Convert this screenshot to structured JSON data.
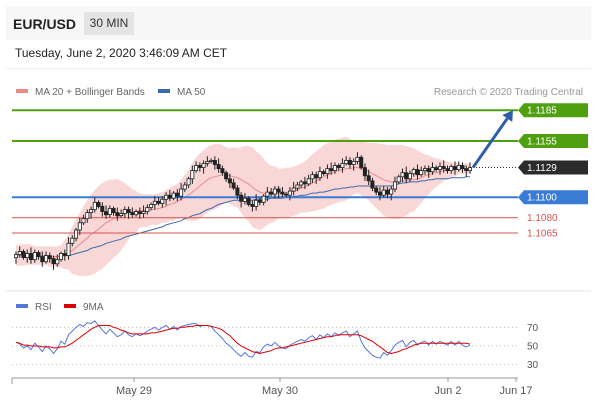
{
  "header": {
    "symbol": "EUR/USD",
    "timeframe": "30 MIN",
    "datetime": "Tuesday, June 2, 2020 3:46:09 AM CET"
  },
  "legend": {
    "ma20_label": "MA 20 + Bollinger Bands",
    "ma50_label": "MA 50",
    "credit": "Research © 2020 Trading Central",
    "ma20_color": "#e88a8a",
    "ma50_color": "#3a6aa8"
  },
  "rsi_legend": {
    "rsi_label": "RSI",
    "ma9_label": "9MA",
    "rsi_color": "#5577dd",
    "ma9_color": "#dd0000"
  },
  "colors": {
    "green": "#4fa00f",
    "blue": "#3a7bd5",
    "red": "#d9534f",
    "dark": "#2b2b2b",
    "arrow": "#2f5ea8"
  },
  "chart_data": [
    {
      "type": "candlestick",
      "x_tick_labels": [
        "May 29",
        "May 30",
        "Jun 2",
        "Jun 17"
      ],
      "ylim": [
        1.1025,
        1.1195
      ],
      "levels": [
        {
          "label": "1.1185",
          "value": 1.1185,
          "style": "resistance-green",
          "boxed": true
        },
        {
          "label": "1.1155",
          "value": 1.1155,
          "style": "resistance-green",
          "boxed": true
        },
        {
          "label": "1.1129",
          "value": 1.1129,
          "style": "current-price",
          "boxed": true
        },
        {
          "label": "1.1100",
          "value": 1.11,
          "style": "pivot-blue",
          "boxed": true
        },
        {
          "label": "1.1080",
          "value": 1.108,
          "style": "support-red",
          "boxed": false
        },
        {
          "label": "1.1065",
          "value": 1.1065,
          "style": "support-red",
          "boxed": false
        }
      ],
      "close": [
        1.1044,
        1.1047,
        1.1041,
        1.1045,
        1.1039,
        1.1046,
        1.1042,
        1.1037,
        1.1043,
        1.104,
        1.1035,
        1.1039,
        1.1045,
        1.1043,
        1.1055,
        1.106,
        1.1068,
        1.1075,
        1.1079,
        1.1085,
        1.1088,
        1.1095,
        1.1091,
        1.1086,
        1.1083,
        1.1089,
        1.1085,
        1.1082,
        1.1084,
        1.1088,
        1.1085,
        1.1083,
        1.1086,
        1.1084,
        1.1086,
        1.109,
        1.1093,
        1.1096,
        1.1094,
        1.1098,
        1.1102,
        1.1099,
        1.1104,
        1.1101,
        1.1108,
        1.1112,
        1.1118,
        1.1126,
        1.1131,
        1.1129,
        1.1133,
        1.1135,
        1.1136,
        1.1132,
        1.1128,
        1.1124,
        1.1118,
        1.1114,
        1.1109,
        1.1102,
        1.1096,
        1.1099,
        1.1093,
        1.1091,
        1.1097,
        1.1095,
        1.1101,
        1.1105,
        1.1103,
        1.1108,
        1.1105,
        1.1103,
        1.1102,
        1.1106,
        1.1109,
        1.1112,
        1.1115,
        1.1113,
        1.1118,
        1.1122,
        1.1119,
        1.1125,
        1.1123,
        1.1128,
        1.1126,
        1.1131,
        1.1129,
        1.1133,
        1.1136,
        1.1132,
        1.1135,
        1.1139,
        1.1129,
        1.1121,
        1.1116,
        1.1109,
        1.1105,
        1.1102,
        1.1107,
        1.1103,
        1.1108,
        1.1115,
        1.112,
        1.1124,
        1.1118,
        1.1123,
        1.1127,
        1.1122,
        1.1126,
        1.1128,
        1.1125,
        1.1129,
        1.1127,
        1.113,
        1.1128,
        1.1126,
        1.113,
        1.1127,
        1.1131,
        1.1128,
        1.1126,
        1.1129
      ],
      "ma20": [
        1.1043,
        1.1043,
        1.1044,
        1.1044,
        1.1044,
        1.1043,
        1.1043,
        1.1043,
        1.1043,
        1.1042,
        1.1042,
        1.1042,
        1.1042,
        1.1044,
        1.1046,
        1.1048,
        1.1051,
        1.1054,
        1.1057,
        1.106,
        1.1064,
        1.1066,
        1.1069,
        1.1072,
        1.1075,
        1.1077,
        1.1079,
        1.1081,
        1.1082,
        1.1084,
        1.1085,
        1.1086,
        1.1086,
        1.1087,
        1.1087,
        1.1087,
        1.1088,
        1.1088,
        1.1089,
        1.109,
        1.1091,
        1.1093,
        1.1094,
        1.1096,
        1.1098,
        1.11,
        1.1102,
        1.1105,
        1.1108,
        1.1111,
        1.1114,
        1.1117,
        1.1119,
        1.112,
        1.1121,
        1.1122,
        1.1122,
        1.1121,
        1.112,
        1.1119,
        1.1117,
        1.1115,
        1.1113,
        1.111,
        1.1107,
        1.1105,
        1.1104,
        1.1103,
        1.1103,
        1.1103,
        1.1104,
        1.1104,
        1.1104,
        1.1105,
        1.1106,
        1.1107,
        1.1109,
        1.111,
        1.1112,
        1.1114,
        1.1116,
        1.1118,
        1.112,
        1.1122,
        1.1123,
        1.1125,
        1.1126,
        1.1127,
        1.1128,
        1.1128,
        1.1129,
        1.1129,
        1.1128,
        1.1127,
        1.1125,
        1.1123,
        1.1121,
        1.1119,
        1.1117,
        1.1116,
        1.1115,
        1.1115,
        1.1115,
        1.1116,
        1.1116,
        1.1117,
        1.1117,
        1.1118,
        1.1119,
        1.1121,
        1.1122,
        1.1123,
        1.1124,
        1.1125,
        1.1126,
        1.1126,
        1.1127,
        1.1127,
        1.1128,
        1.1128,
        1.1128,
        1.1128
      ],
      "bb_upper": [
        1.1053,
        1.1054,
        1.1054,
        1.1054,
        1.1054,
        1.1052,
        1.1052,
        1.1052,
        1.1052,
        1.1052,
        1.1052,
        1.1052,
        1.1053,
        1.1058,
        1.1064,
        1.1071,
        1.1078,
        1.1085,
        1.1091,
        1.1097,
        1.1103,
        1.1107,
        1.1111,
        1.1114,
        1.1116,
        1.1117,
        1.1117,
        1.1118,
        1.1116,
        1.1114,
        1.1111,
        1.1108,
        1.1106,
        1.1104,
        1.1103,
        1.1103,
        1.1103,
        1.1103,
        1.1104,
        1.1105,
        1.1107,
        1.1109,
        1.1111,
        1.1113,
        1.1117,
        1.1122,
        1.1127,
        1.1133,
        1.1139,
        1.1143,
        1.1146,
        1.1149,
        1.1151,
        1.1152,
        1.1152,
        1.1151,
        1.1149,
        1.1148,
        1.1149,
        1.1148,
        1.1149,
        1.115,
        1.115,
        1.1149,
        1.1145,
        1.1142,
        1.1138,
        1.1133,
        1.1131,
        1.113,
        1.1128,
        1.1128,
        1.1129,
        1.1129,
        1.113,
        1.1131,
        1.1133,
        1.1135,
        1.1138,
        1.1142,
        1.1145,
        1.1148,
        1.1151,
        1.1153,
        1.1154,
        1.1156,
        1.1157,
        1.1158,
        1.1159,
        1.1157,
        1.1155,
        1.1154,
        1.1154,
        1.1154,
        1.1153,
        1.1153,
        1.1153,
        1.1152,
        1.1152,
        1.1151,
        1.1151,
        1.1151,
        1.1151,
        1.1151,
        1.115,
        1.1149,
        1.1148,
        1.1146,
        1.1144,
        1.1142,
        1.1141,
        1.1139,
        1.1138,
        1.1137,
        1.1136,
        1.1135,
        1.1134,
        1.1134,
        1.1133,
        1.1133,
        1.1133,
        1.1133
      ],
      "bb_lower": [
        1.1033,
        1.1033,
        1.1033,
        1.1034,
        1.1034,
        1.1034,
        1.1034,
        1.1034,
        1.1034,
        1.1032,
        1.1032,
        1.1032,
        1.1031,
        1.103,
        1.1029,
        1.1025,
        1.1024,
        1.1023,
        1.1023,
        1.1023,
        1.1024,
        1.1025,
        1.1028,
        1.103,
        1.1034,
        1.1037,
        1.1041,
        1.1044,
        1.1048,
        1.1053,
        1.1059,
        1.1064,
        1.1066,
        1.107,
        1.1071,
        1.1071,
        1.1073,
        1.1073,
        1.1073,
        1.1075,
        1.1075,
        1.1077,
        1.1077,
        1.1079,
        1.1079,
        1.1078,
        1.1077,
        1.1077,
        1.1077,
        1.1079,
        1.1082,
        1.1085,
        1.1087,
        1.1088,
        1.109,
        1.1093,
        1.1095,
        1.1094,
        1.1091,
        1.109,
        1.1085,
        1.108,
        1.1076,
        1.1071,
        1.1069,
        1.1068,
        1.107,
        1.1073,
        1.1075,
        1.1076,
        1.108,
        1.108,
        1.1079,
        1.1081,
        1.1082,
        1.1083,
        1.1085,
        1.1085,
        1.1086,
        1.1086,
        1.1087,
        1.1088,
        1.1089,
        1.1091,
        1.1092,
        1.1094,
        1.1095,
        1.1096,
        1.1097,
        1.1099,
        1.1103,
        1.1104,
        1.1102,
        1.11,
        1.1097,
        1.1093,
        1.1089,
        1.1086,
        1.1082,
        1.1081,
        1.1079,
        1.1079,
        1.1079,
        1.1081,
        1.1082,
        1.1085,
        1.1086,
        1.109,
        1.1094,
        1.11,
        1.1103,
        1.1107,
        1.111,
        1.1113,
        1.1116,
        1.1117,
        1.112,
        1.112,
        1.1123,
        1.1123,
        1.1123,
        1.1123
      ],
      "ma50": [
        1.1043,
        1.1043,
        1.1043,
        1.1043,
        1.1043,
        1.1043,
        1.1042,
        1.1042,
        1.1042,
        1.1042,
        1.1042,
        1.1042,
        1.1043,
        1.1043,
        1.1043,
        1.1044,
        1.1045,
        1.1046,
        1.1047,
        1.1048,
        1.105,
        1.1051,
        1.1052,
        1.1053,
        1.1055,
        1.1056,
        1.1057,
        1.1058,
        1.1059,
        1.1061,
        1.1062,
        1.1063,
        1.1064,
        1.1065,
        1.1066,
        1.1067,
        1.1068,
        1.1069,
        1.107,
        1.1071,
        1.1073,
        1.1074,
        1.1075,
        1.1076,
        1.1077,
        1.1079,
        1.108,
        1.1082,
        1.1083,
        1.1084,
        1.1086,
        1.1088,
        1.1089,
        1.1091,
        1.1093,
        1.1094,
        1.1095,
        1.1096,
        1.1097,
        1.1097,
        1.1097,
        1.1097,
        1.1097,
        1.1097,
        1.1098,
        1.1098,
        1.1098,
        1.1098,
        1.1099,
        1.1099,
        1.1099,
        1.1099,
        1.11,
        1.11,
        1.1101,
        1.1101,
        1.1102,
        1.1102,
        1.1103,
        1.1104,
        1.1104,
        1.1105,
        1.1105,
        1.1106,
        1.1107,
        1.1108,
        1.1108,
        1.1109,
        1.1109,
        1.111,
        1.111,
        1.1111,
        1.1111,
        1.1111,
        1.1111,
        1.1111,
        1.1111,
        1.1111,
        1.1111,
        1.1111,
        1.1111,
        1.1112,
        1.1113,
        1.1114,
        1.1114,
        1.1115,
        1.1115,
        1.1115,
        1.1116,
        1.1116,
        1.1117,
        1.1117,
        1.1118,
        1.1118,
        1.1118,
        1.1118,
        1.1119,
        1.1119,
        1.1119,
        1.1119,
        1.112,
        1.112
      ],
      "projection": {
        "from": 1.1129,
        "to": 1.1185,
        "direction": "up"
      }
    },
    {
      "type": "line",
      "name": "RSI panel",
      "ylim": [
        20,
        80
      ],
      "y_ticks": [
        "70",
        "50",
        "30"
      ],
      "series": [
        {
          "name": "RSI",
          "values": [
            54,
            52,
            48,
            50,
            46,
            53,
            49,
            44,
            50,
            47,
            42,
            47,
            55,
            52,
            62,
            66,
            70,
            73,
            71,
            75,
            74,
            77,
            72,
            67,
            63,
            68,
            64,
            60,
            62,
            66,
            62,
            60,
            63,
            61,
            63,
            66,
            68,
            70,
            67,
            70,
            72,
            68,
            71,
            67,
            71,
            72,
            73,
            74,
            74,
            71,
            72,
            72,
            71,
            66,
            62,
            58,
            53,
            50,
            46,
            42,
            39,
            43,
            39,
            38,
            44,
            43,
            49,
            52,
            50,
            54,
            50,
            48,
            47,
            51,
            53,
            55,
            57,
            55,
            59,
            61,
            57,
            62,
            59,
            63,
            60,
            64,
            61,
            64,
            66,
            60,
            63,
            66,
            55,
            48,
            44,
            40,
            38,
            37,
            43,
            40,
            45,
            51,
            54,
            56,
            49,
            54,
            56,
            51,
            54,
            55,
            51,
            55,
            52,
            55,
            53,
            51,
            55,
            51,
            55,
            51,
            49,
            51
          ]
        },
        {
          "name": "9MA",
          "values": [
            54,
            53,
            51,
            51,
            50,
            50,
            50,
            49,
            49,
            49,
            48,
            48,
            49,
            49,
            51,
            53,
            56,
            59,
            62,
            65,
            68,
            70,
            72,
            72,
            72,
            72,
            70,
            69,
            67,
            66,
            64,
            63,
            63,
            63,
            63,
            63,
            64,
            64,
            65,
            66,
            67,
            68,
            69,
            69,
            70,
            70,
            71,
            71,
            72,
            72,
            72,
            72,
            71,
            70,
            69,
            67,
            64,
            61,
            57,
            53,
            50,
            48,
            46,
            44,
            43,
            42,
            43,
            44,
            45,
            47,
            48,
            48,
            49,
            50,
            51,
            52,
            53,
            54,
            55,
            56,
            57,
            58,
            59,
            60,
            60,
            61,
            62,
            62,
            62,
            62,
            62,
            62,
            61,
            59,
            57,
            55,
            52,
            49,
            46,
            43,
            42,
            43,
            44,
            46,
            47,
            49,
            51,
            52,
            53,
            53,
            53,
            53,
            53,
            53,
            53,
            53,
            53,
            53,
            53,
            53,
            53,
            52
          ]
        }
      ],
      "x_tick_labels": [
        "May 29",
        "May 30",
        "Jun 2",
        "Jun 17"
      ]
    }
  ]
}
